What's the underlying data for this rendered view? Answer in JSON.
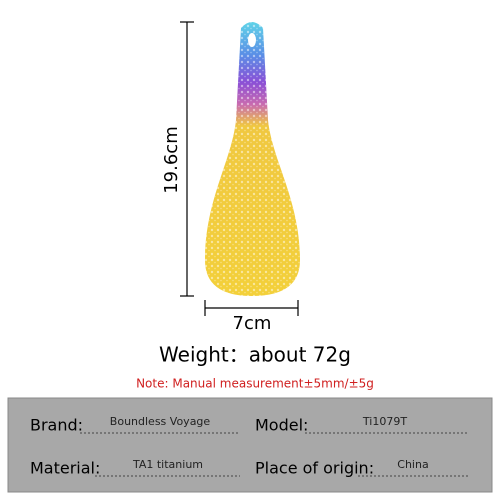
{
  "dimensions": {
    "height": "19.6cm",
    "width": "7cm"
  },
  "weight": "Weight：about 72g",
  "note": "Note: Manual measurement±5mm/±5g",
  "specs": {
    "brand_label": "Brand:",
    "brand": "Boundless Voyage",
    "model_label": "Model:",
    "model": "Ti1079T",
    "material_label": "Material:",
    "material": "TA1 titanium",
    "origin_label": "Place of origin:",
    "origin": "China"
  }
}
